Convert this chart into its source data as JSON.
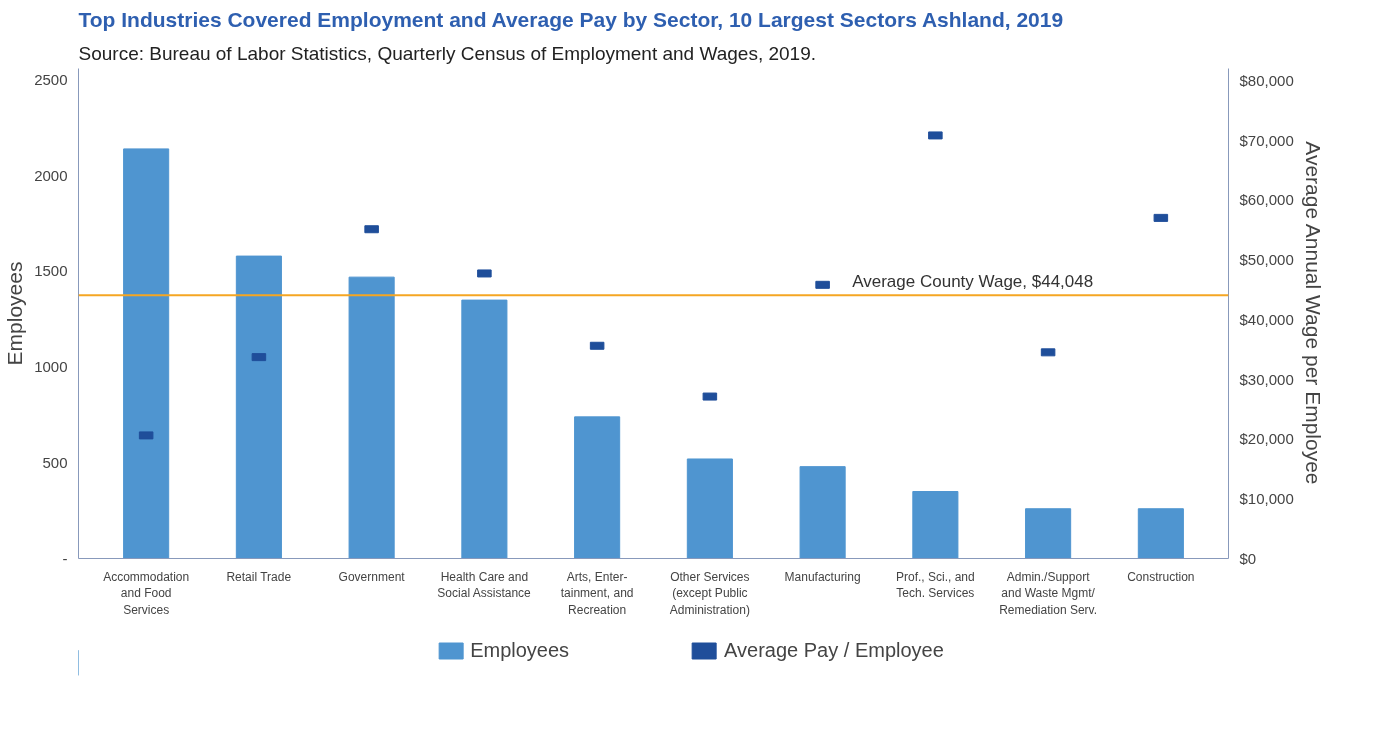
{
  "chart_data": {
    "type": "bar",
    "title": "Top Industries Covered Employment and Average Pay by Sector, 10 Largest Sectors Ashland, 2019",
    "subtitle": "Source: Bureau of Labor Statistics, Quarterly Census of Employment and Wages, 2019.",
    "ylabel": "Employees",
    "y2label": "Average Annual Wage per Employee",
    "categories": [
      "Accommodation\nand Food\nServices",
      "Retail Trade",
      "Government",
      "Health Care and\nSocial Assistance",
      "Arts, Enter-\ntainment, and\nRecreation",
      "Other Services\n(except Public\nAdministration)",
      "Manufacturing",
      "Prof., Sci., and\nTech. Services",
      "Admin./Support\nand Waste Mgmt/\nRemediation Serv.",
      "Construction"
    ],
    "series": [
      {
        "name": "Employees",
        "color": "#4f95d0",
        "values": [
          2140,
          1580,
          1470,
          1350,
          740,
          520,
          480,
          350,
          260,
          260
        ]
      },
      {
        "name": "Average Pay / Employee",
        "type": "scatter",
        "axis": "y2",
        "color": "#1f4e9a",
        "values": [
          20600,
          33700,
          55100,
          47700,
          35600,
          27100,
          45800,
          70800,
          34500,
          57000
        ]
      }
    ],
    "ylim": [
      0,
      2560
    ],
    "yticks": [
      {
        "value": 0,
        "label": "-"
      },
      500,
      1000,
      1500,
      2000,
      2500
    ],
    "y2lim": [
      0,
      82000
    ],
    "y2ticks": [
      {
        "value": 0,
        "label": "$0"
      },
      {
        "value": 10000,
        "label": "$10,000"
      },
      {
        "value": 20000,
        "label": "$20,000"
      },
      {
        "value": 30000,
        "label": "$30,000"
      },
      {
        "value": 40000,
        "label": "$40,000"
      },
      {
        "value": 50000,
        "label": "$50,000"
      },
      {
        "value": 60000,
        "label": "$60,000"
      },
      {
        "value": 70000,
        "label": "$70,000"
      },
      {
        "value": 80000,
        "label": "$80,000"
      }
    ],
    "ref_lines": [
      {
        "axis": "y2",
        "value": 44048,
        "label": "Average County Wage, $44,048",
        "color": "#f5a623"
      }
    ],
    "grid": false,
    "legend": "bottom"
  }
}
